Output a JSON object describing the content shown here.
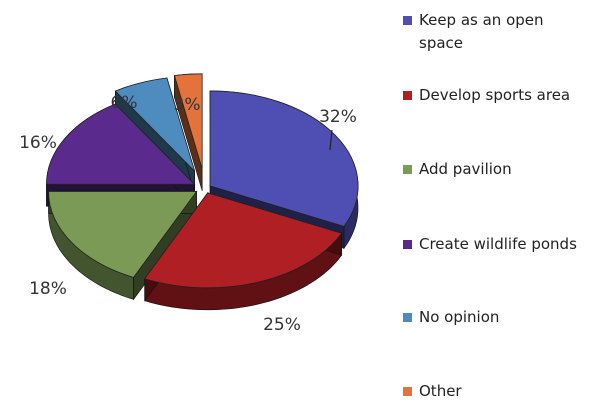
{
  "chart_data": {
    "type": "pie",
    "title": "",
    "legend_position": "right",
    "slices": [
      {
        "label": "Keep as an open space",
        "value": 32,
        "value_label": "32%",
        "color": "#4f4fb3"
      },
      {
        "label": "Develop sports area",
        "value": 25,
        "value_label": "25%",
        "color": "#b01f24"
      },
      {
        "label": "Add pavilion",
        "value": 18,
        "value_label": "18%",
        "color": "#7a9a55"
      },
      {
        "label": "Create wildlife ponds",
        "value": 16,
        "value_label": "16%",
        "color": "#5a2a8c"
      },
      {
        "label": "No opinion",
        "value": 6,
        "value_label": "6%",
        "color": "#4e8cbf"
      },
      {
        "label": "Other",
        "value": 3,
        "value_label": "3%",
        "color": "#e3723b"
      }
    ]
  }
}
